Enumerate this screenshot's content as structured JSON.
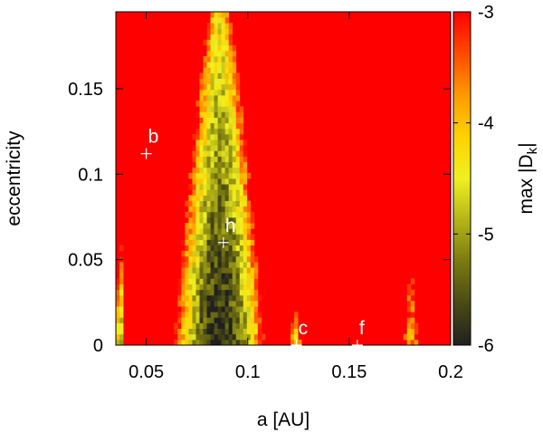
{
  "chart_data": {
    "type": "heatmap",
    "xlabel": "a [AU]",
    "ylabel": "eccentricity",
    "colorbar_label": "max |D",
    "colorbar_label_sub": "k",
    "colorbar_label_end": "|",
    "xlim": [
      0.035,
      0.2
    ],
    "ylim": [
      0,
      0.195
    ],
    "clim": [
      -6,
      -3
    ],
    "x_ticks": [
      {
        "value": 0.05,
        "label": "0.05"
      },
      {
        "value": 0.1,
        "label": "0.1"
      },
      {
        "value": 0.15,
        "label": "0.15"
      },
      {
        "value": 0.2,
        "label": "0.2"
      }
    ],
    "y_ticks": [
      {
        "value": 0,
        "label": "0"
      },
      {
        "value": 0.05,
        "label": "0.05"
      },
      {
        "value": 0.1,
        "label": "0.1"
      },
      {
        "value": 0.15,
        "label": "0.15"
      }
    ],
    "colorbar_ticks": [
      {
        "value": -3,
        "label": "-3"
      },
      {
        "value": -4,
        "label": "-4"
      },
      {
        "value": -5,
        "label": "-5"
      },
      {
        "value": -6,
        "label": "-6"
      }
    ],
    "colormap": [
      "#202020",
      "#4a4a14",
      "#7a7a10",
      "#b4b418",
      "#f0f020",
      "#ffd200",
      "#ff9a00",
      "#ff4a00",
      "#ff0000"
    ],
    "background_value": -3.0,
    "stable_regions": [
      {
        "a_min": 0.035,
        "a_max": 0.039,
        "e_min": 0.0,
        "e_max": 0.065,
        "core": -5.1
      },
      {
        "a_min": 0.064,
        "a_max": 0.108,
        "e_min": 0.0,
        "e_max": 0.195,
        "core": -6.0
      },
      {
        "a_min": 0.121,
        "a_max": 0.126,
        "e_min": 0.0,
        "e_max": 0.02,
        "core": -4.4
      },
      {
        "a_min": 0.177,
        "a_max": 0.184,
        "e_min": 0.0,
        "e_max": 0.038,
        "core": -3.8
      }
    ],
    "planets": [
      {
        "label": "b",
        "a": 0.05,
        "e": 0.112
      },
      {
        "label": "h",
        "a": 0.088,
        "e": 0.06
      },
      {
        "label": "c",
        "a": 0.124,
        "e": 0.0
      },
      {
        "label": "f",
        "a": 0.154,
        "e": 0.0
      }
    ]
  }
}
